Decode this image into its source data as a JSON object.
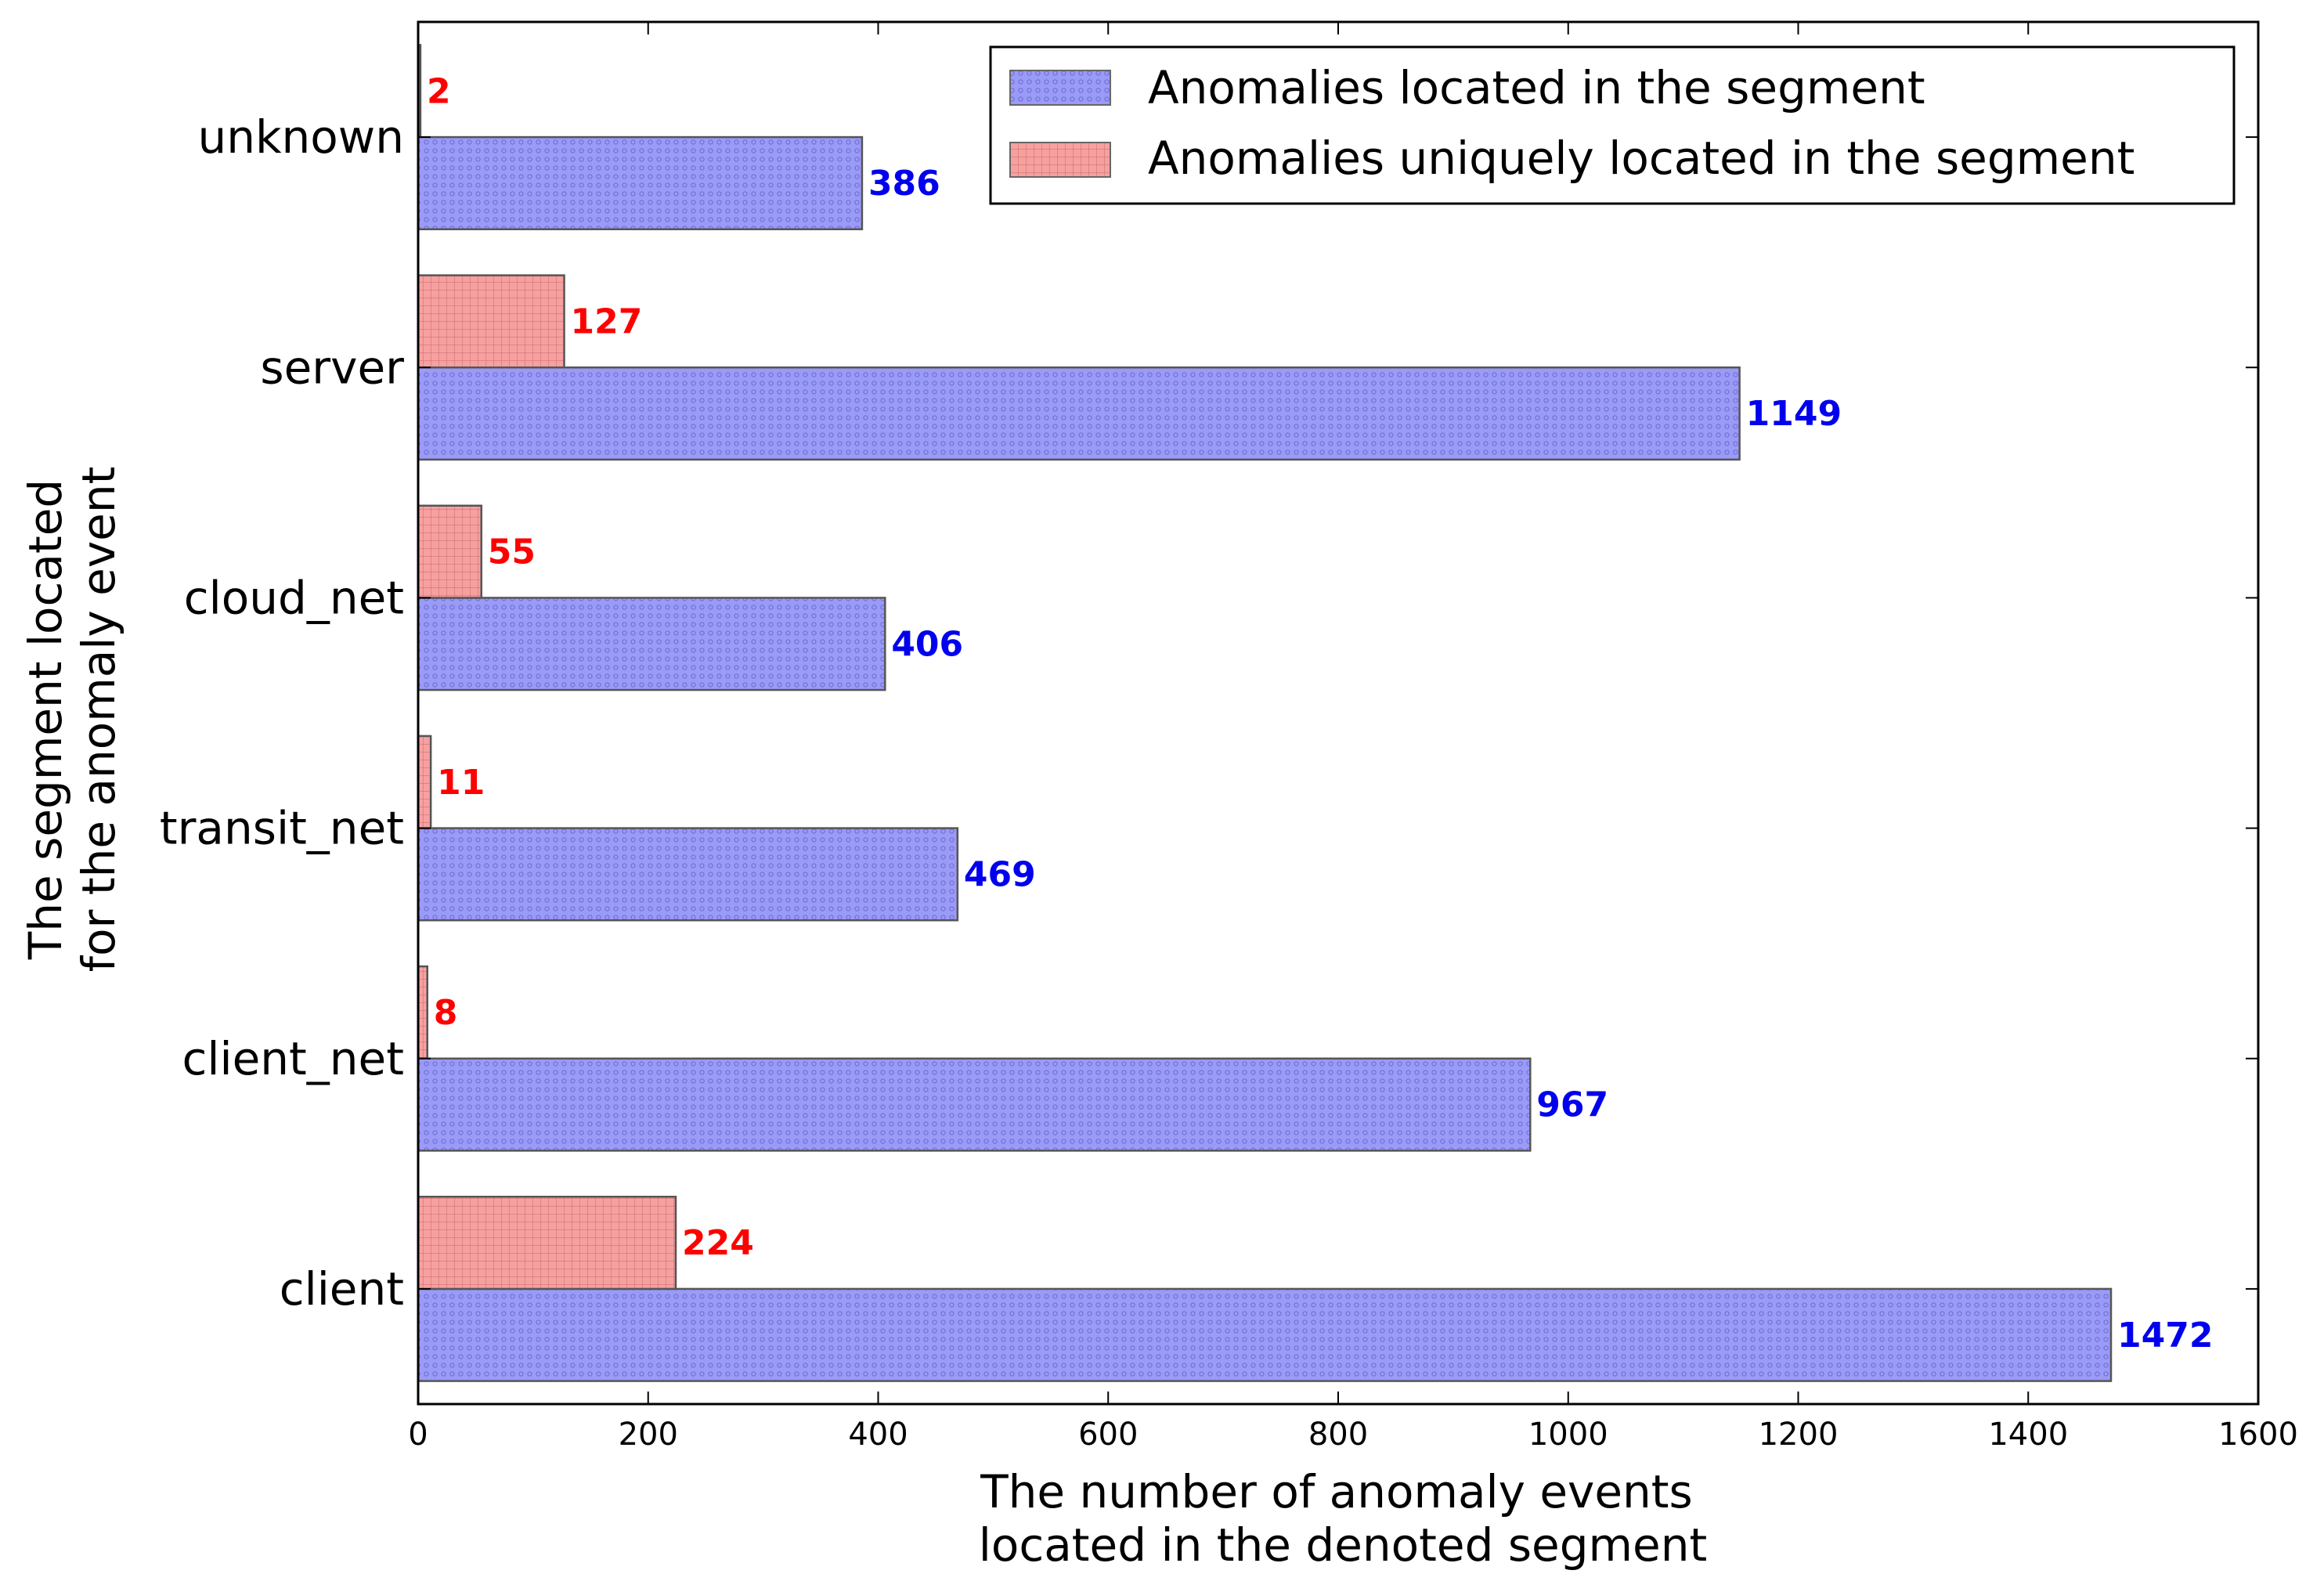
{
  "chart_data": {
    "type": "bar",
    "orientation": "horizontal",
    "categories": [
      "client",
      "client_net",
      "transit_net",
      "cloud_net",
      "server",
      "unknown"
    ],
    "series": [
      {
        "name": "Anomalies located in the segment",
        "values": [
          1472,
          967,
          469,
          406,
          1149,
          386
        ],
        "color": "#8f8ff5",
        "label_color": "#0000ee",
        "hatch": "dots"
      },
      {
        "name": "Anomalies uniquely located in the segment",
        "values": [
          224,
          8,
          11,
          55,
          127,
          2
        ],
        "color": "#f79c9c",
        "label_color": "#ff0000",
        "hatch": "grid"
      }
    ],
    "xlabel_lines": [
      "The number of anomaly events",
      "located in the denoted segment"
    ],
    "ylabel_lines": [
      "The segment located",
      "for the anomaly event"
    ],
    "xlim": [
      0,
      1600
    ],
    "xticks": [
      0,
      200,
      400,
      600,
      800,
      1000,
      1200,
      1400,
      1600
    ],
    "grid": false,
    "legend_position": "top-right",
    "data_labels": true
  }
}
